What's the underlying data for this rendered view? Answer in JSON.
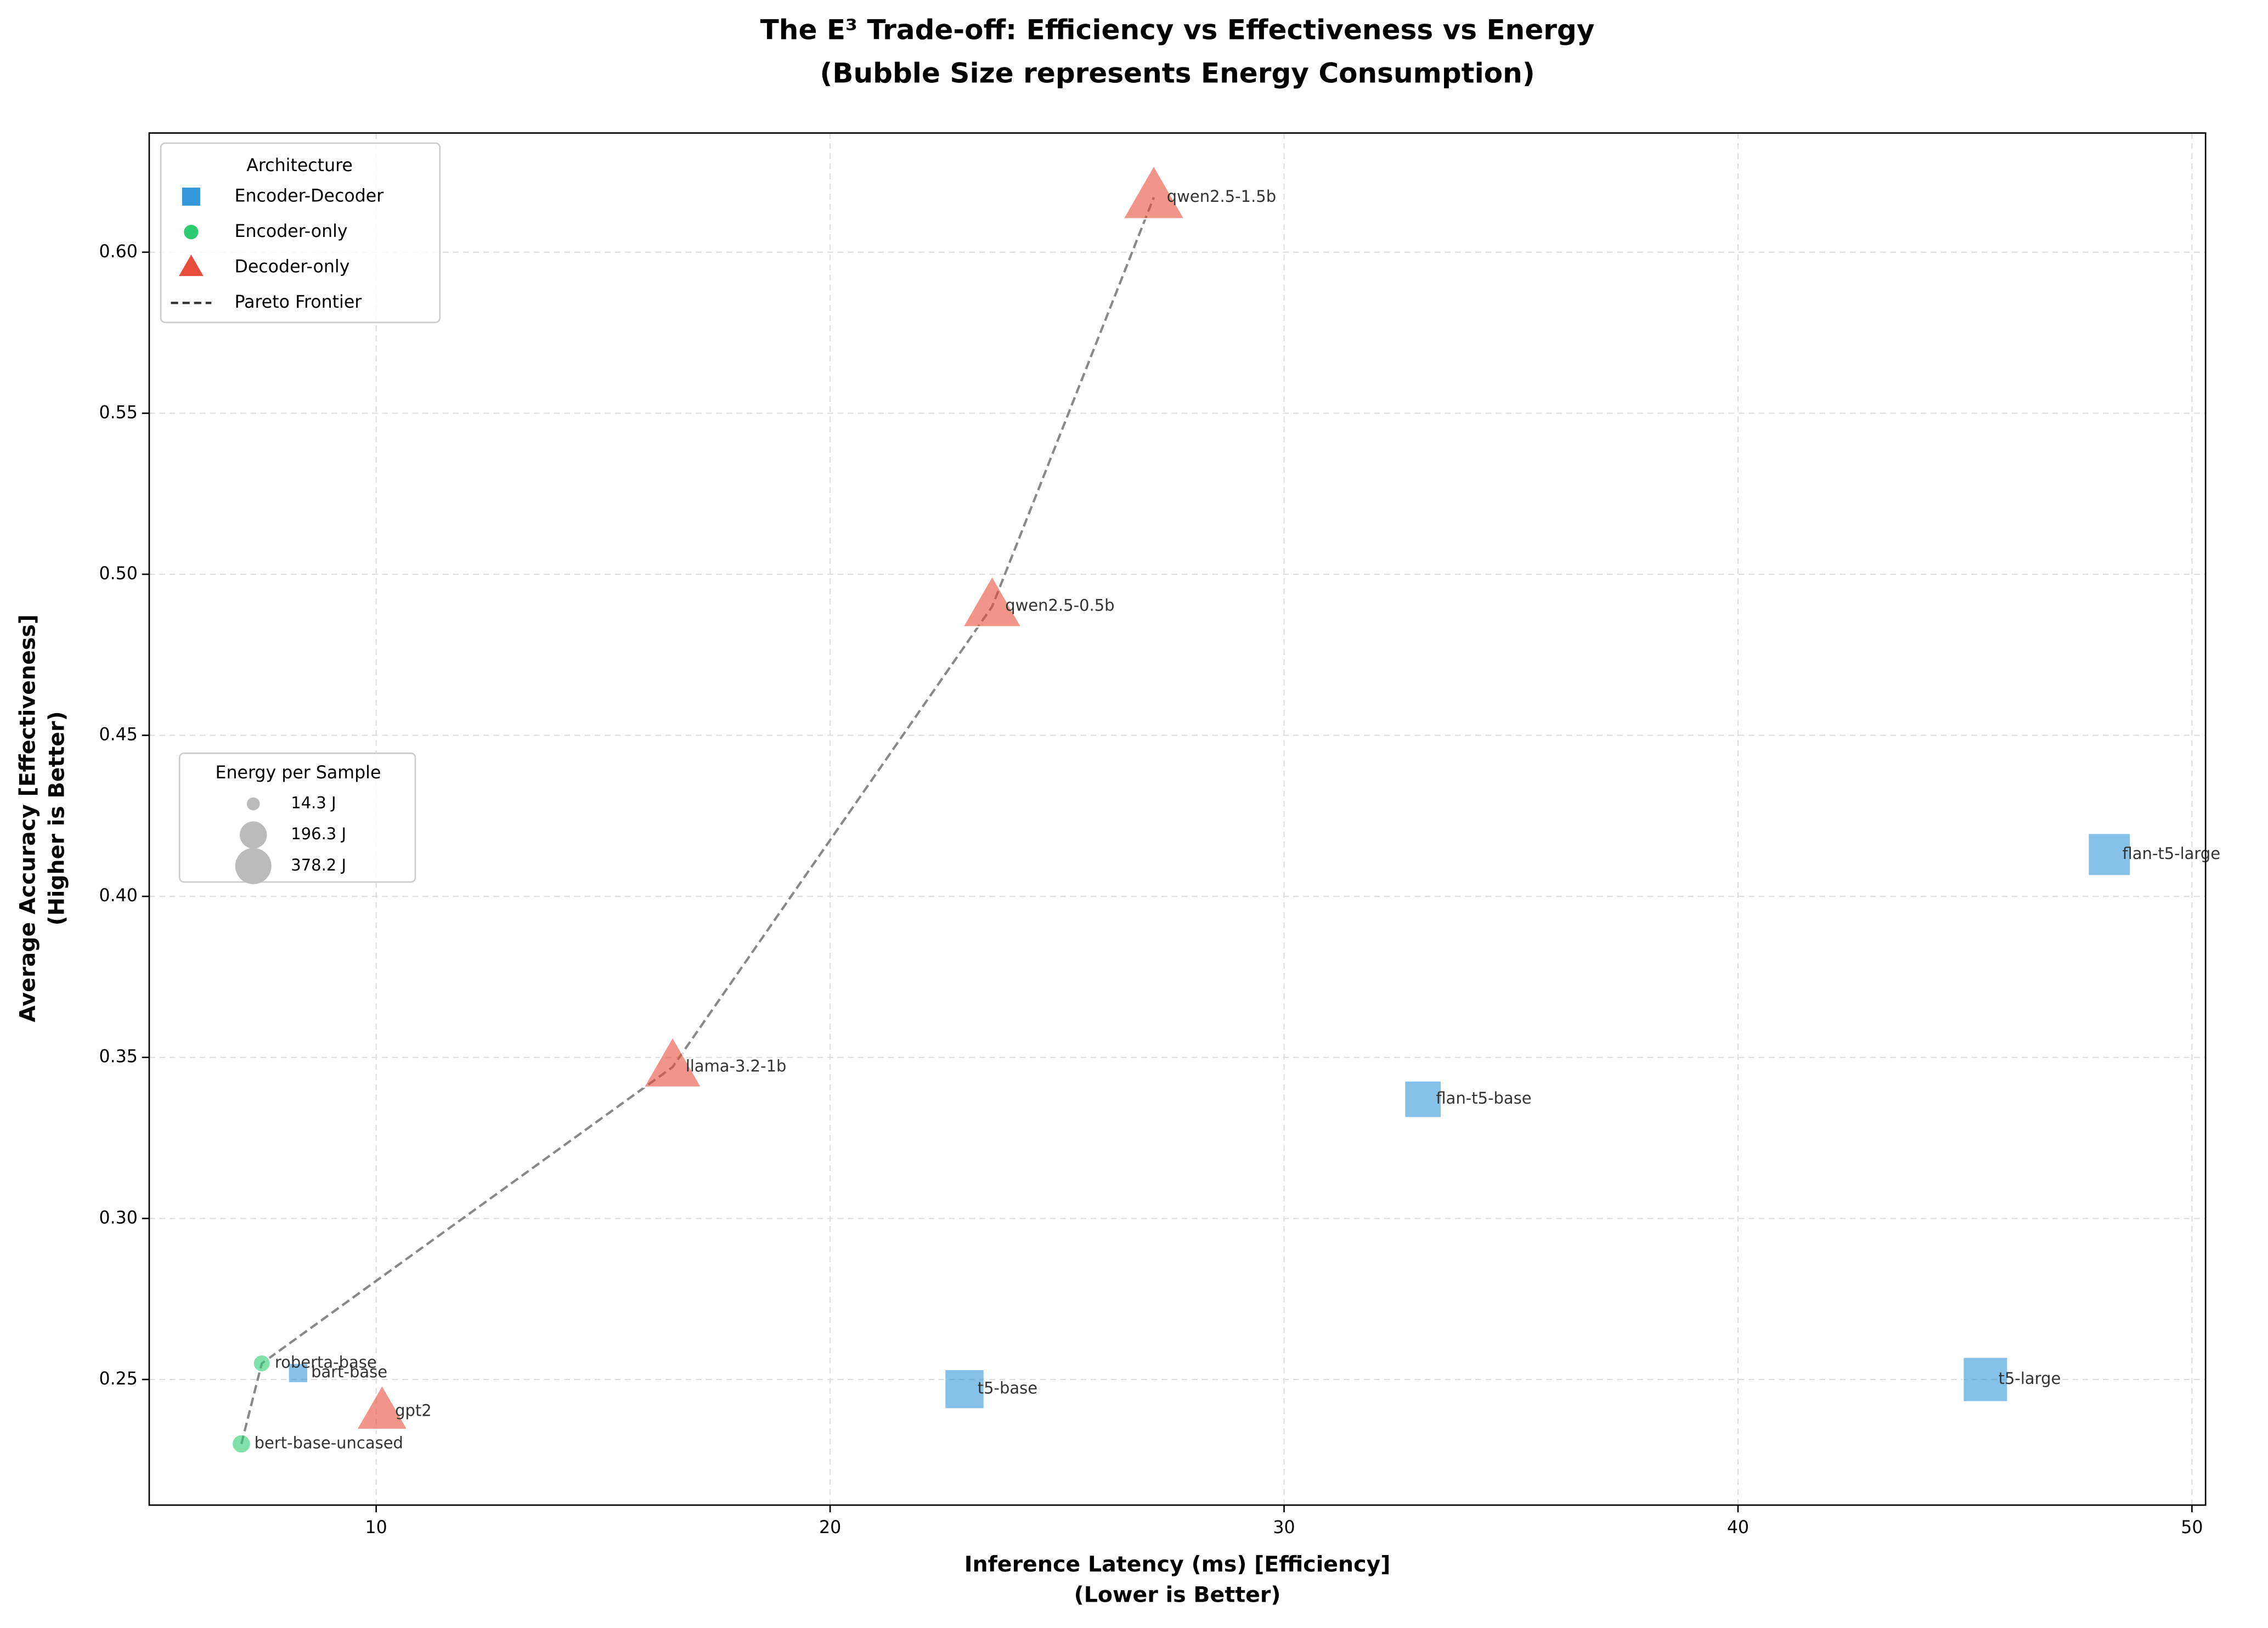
{
  "chart_data": {
    "type": "scatter",
    "title": "The E³ Trade-off: Efficiency vs Effectiveness vs Energy",
    "subtitle": "(Bubble Size represents Energy Consumption)",
    "xlabel": "Inference Latency (ms) [Efficiency]",
    "xlabel_note": "(Lower is Better)",
    "ylabel": "Average Accuracy [Effectiveness]",
    "ylabel_note": "(Higher is Better)",
    "xlim": [
      5.0,
      50.3
    ],
    "xticks": [
      10,
      20,
      30,
      40,
      50
    ],
    "ylim": [
      0.211,
      0.637
    ],
    "yticks": [
      {
        "value": 0.25,
        "label": "0.25"
      },
      {
        "value": 0.3,
        "label": "0.30"
      },
      {
        "value": 0.35,
        "label": "0.35"
      },
      {
        "value": 0.4,
        "label": "0.40"
      },
      {
        "value": 0.45,
        "label": "0.45"
      },
      {
        "value": 0.5,
        "label": "0.50"
      },
      {
        "value": 0.55,
        "label": "0.55"
      },
      {
        "value": 0.6,
        "label": "0.60"
      }
    ],
    "grid": true,
    "legend_title": "Architecture",
    "series": [
      {
        "name": "Encoder-Decoder",
        "color": "#3498db",
        "marker": "square",
        "labels": [
          "t5-base",
          "t5-large",
          "flan-t5-base",
          "flan-t5-large",
          "bart-base"
        ],
        "x": [
          22.96,
          45.45,
          33.06,
          48.18,
          8.28
        ],
        "values": [
          0.247,
          0.25,
          0.337,
          0.413,
          0.252
        ],
        "sizes": [
          280,
          370,
          240,
          330,
          40
        ]
      },
      {
        "name": "Encoder-only",
        "color": "#2ecc71",
        "marker": "circle",
        "labels": [
          "roberta-base",
          "bert-base-uncased"
        ],
        "x": [
          7.48,
          7.03
        ],
        "values": [
          0.255,
          0.23
        ],
        "sizes": [
          56,
          73
        ]
      },
      {
        "name": "Decoder-only",
        "color": "#e74c3c",
        "marker": "triangle",
        "labels": [
          "gpt2",
          "llama-3.2-1b",
          "qwen2.5-0.5b",
          "qwen2.5-1.5b"
        ],
        "x": [
          10.13,
          16.53,
          23.57,
          27.13
        ],
        "values": [
          0.24,
          0.347,
          0.49,
          0.617
        ],
        "sizes": [
          250,
          330,
          340,
          378.2
        ]
      }
    ],
    "pareto": {
      "name": "Pareto Frontier",
      "x": [
        7.03,
        7.48,
        16.53,
        23.57,
        27.13
      ],
      "values": [
        0.23,
        0.255,
        0.347,
        0.49,
        0.617
      ]
    },
    "size_legend": {
      "title": "Energy per Sample",
      "entries": [
        {
          "value": 14.3,
          "label": "14.3 J"
        },
        {
          "value": 196.3,
          "label": "196.3 J"
        },
        {
          "value": 378.2,
          "label": "378.2 J"
        }
      ]
    }
  }
}
